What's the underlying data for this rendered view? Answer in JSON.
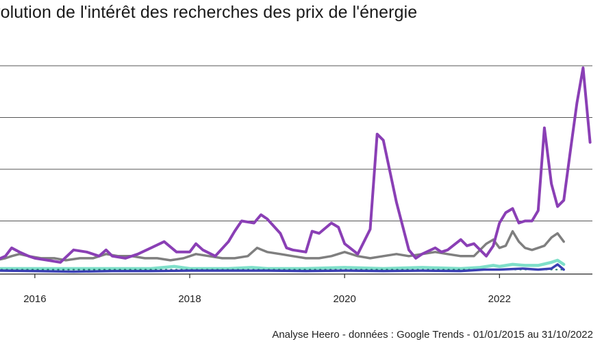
{
  "title": "volution de l'intérêt des recherches des prix de l'énergie",
  "caption": "Analyse Heero - données : Google Trends - 01/01/2015 au 31/10/2022",
  "chart_data": {
    "type": "line",
    "title": "volution de l'intérêt des recherches des prix de l'énergie",
    "xlabel": "",
    "ylabel": "",
    "xlim": [
      2015.55,
      2023.2
    ],
    "ylim": [
      0,
      100
    ],
    "x_ticks": [
      {
        "value": 2016,
        "label": "2016"
      },
      {
        "value": 2018,
        "label": "2018"
      },
      {
        "value": 2020,
        "label": "2020"
      },
      {
        "value": 2022,
        "label": "2022"
      }
    ],
    "y_gridlines": [
      25,
      50,
      75,
      100
    ],
    "series": [
      {
        "name": "series-grey",
        "color": "#7f7f7f",
        "points": [
          [
            2015.5,
            6
          ],
          [
            2015.62,
            7
          ],
          [
            2015.7,
            8
          ],
          [
            2015.8,
            9
          ],
          [
            2015.92,
            8
          ],
          [
            2016.08,
            7
          ],
          [
            2016.25,
            7
          ],
          [
            2016.4,
            6
          ],
          [
            2016.58,
            7
          ],
          [
            2016.75,
            7
          ],
          [
            2016.92,
            9
          ],
          [
            2017.08,
            8
          ],
          [
            2017.25,
            8
          ],
          [
            2017.42,
            7
          ],
          [
            2017.58,
            7
          ],
          [
            2017.75,
            6
          ],
          [
            2017.92,
            7
          ],
          [
            2018.08,
            9
          ],
          [
            2018.25,
            8
          ],
          [
            2018.42,
            7
          ],
          [
            2018.58,
            7
          ],
          [
            2018.75,
            8
          ],
          [
            2018.87,
            12
          ],
          [
            2019.0,
            10
          ],
          [
            2019.17,
            9
          ],
          [
            2019.33,
            8
          ],
          [
            2019.5,
            7
          ],
          [
            2019.67,
            7
          ],
          [
            2019.83,
            8
          ],
          [
            2020.0,
            10
          ],
          [
            2020.17,
            8
          ],
          [
            2020.33,
            7
          ],
          [
            2020.5,
            8
          ],
          [
            2020.67,
            9
          ],
          [
            2020.83,
            8
          ],
          [
            2021.0,
            9
          ],
          [
            2021.17,
            10
          ],
          [
            2021.33,
            9
          ],
          [
            2021.5,
            8
          ],
          [
            2021.67,
            8
          ],
          [
            2021.83,
            14
          ],
          [
            2021.92,
            16
          ],
          [
            2022.0,
            12
          ],
          [
            2022.08,
            13
          ],
          [
            2022.17,
            20
          ],
          [
            2022.25,
            15
          ],
          [
            2022.33,
            12
          ],
          [
            2022.42,
            11
          ],
          [
            2022.5,
            12
          ],
          [
            2022.58,
            13
          ],
          [
            2022.67,
            17
          ],
          [
            2022.75,
            19
          ],
          [
            2022.83,
            15
          ]
        ]
      },
      {
        "name": "series-aqua",
        "color": "#7fdfc9",
        "points": [
          [
            2015.5,
            2
          ],
          [
            2016.0,
            2
          ],
          [
            2016.5,
            2
          ],
          [
            2017.0,
            2
          ],
          [
            2017.5,
            2
          ],
          [
            2017.8,
            3
          ],
          [
            2018.0,
            2
          ],
          [
            2018.5,
            2
          ],
          [
            2018.8,
            2.5
          ],
          [
            2019.0,
            2
          ],
          [
            2019.5,
            2
          ],
          [
            2020.0,
            2.5
          ],
          [
            2020.5,
            2
          ],
          [
            2021.0,
            2.5
          ],
          [
            2021.5,
            2
          ],
          [
            2021.75,
            2.5
          ],
          [
            2021.92,
            3.5
          ],
          [
            2022.0,
            3
          ],
          [
            2022.17,
            4
          ],
          [
            2022.33,
            3.5
          ],
          [
            2022.5,
            3.5
          ],
          [
            2022.67,
            5
          ],
          [
            2022.75,
            6
          ],
          [
            2022.83,
            4
          ]
        ]
      },
      {
        "name": "series-dotted",
        "color": "#1f7a6a",
        "points": [
          [
            2015.5,
            1.5
          ],
          [
            2022.85,
            1.5
          ]
        ]
      },
      {
        "name": "series-blue",
        "color": "#3a3fb3",
        "points": [
          [
            2015.5,
            1
          ],
          [
            2016.0,
            0.8
          ],
          [
            2016.5,
            0.5
          ],
          [
            2017.0,
            0.8
          ],
          [
            2017.5,
            0.8
          ],
          [
            2018.0,
            1
          ],
          [
            2018.5,
            1
          ],
          [
            2019.0,
            1
          ],
          [
            2019.5,
            0.8
          ],
          [
            2020.0,
            1
          ],
          [
            2020.5,
            0.8
          ],
          [
            2021.0,
            1
          ],
          [
            2021.5,
            0.8
          ],
          [
            2021.8,
            1.5
          ],
          [
            2022.0,
            1.5
          ],
          [
            2022.3,
            2
          ],
          [
            2022.5,
            1.5
          ],
          [
            2022.67,
            2
          ],
          [
            2022.75,
            4
          ],
          [
            2022.83,
            1.5
          ]
        ]
      },
      {
        "name": "series-purple",
        "color": "#8a3fb5",
        "points": [
          [
            2015.5,
            6
          ],
          [
            2015.62,
            8
          ],
          [
            2015.7,
            12
          ],
          [
            2015.8,
            10
          ],
          [
            2015.92,
            8
          ],
          [
            2016.0,
            7
          ],
          [
            2016.17,
            6
          ],
          [
            2016.33,
            5
          ],
          [
            2016.5,
            11
          ],
          [
            2016.67,
            10
          ],
          [
            2016.83,
            8
          ],
          [
            2016.92,
            11
          ],
          [
            2017.0,
            8
          ],
          [
            2017.17,
            7
          ],
          [
            2017.33,
            9
          ],
          [
            2017.5,
            12
          ],
          [
            2017.67,
            15
          ],
          [
            2017.83,
            10
          ],
          [
            2018.0,
            10
          ],
          [
            2018.08,
            14
          ],
          [
            2018.17,
            11
          ],
          [
            2018.33,
            8
          ],
          [
            2018.5,
            15
          ],
          [
            2018.58,
            20
          ],
          [
            2018.67,
            25
          ],
          [
            2018.83,
            24
          ],
          [
            2018.92,
            28
          ],
          [
            2019.0,
            26
          ],
          [
            2019.17,
            19
          ],
          [
            2019.25,
            12
          ],
          [
            2019.33,
            11
          ],
          [
            2019.5,
            10
          ],
          [
            2019.58,
            20
          ],
          [
            2019.67,
            19
          ],
          [
            2019.83,
            24
          ],
          [
            2019.92,
            22
          ],
          [
            2020.0,
            14
          ],
          [
            2020.17,
            9
          ],
          [
            2020.33,
            21
          ],
          [
            2020.42,
            67
          ],
          [
            2020.5,
            64
          ],
          [
            2020.67,
            34
          ],
          [
            2020.83,
            11
          ],
          [
            2020.92,
            7
          ],
          [
            2021.0,
            9
          ],
          [
            2021.17,
            12
          ],
          [
            2021.25,
            10
          ],
          [
            2021.33,
            11
          ],
          [
            2021.5,
            16
          ],
          [
            2021.58,
            13
          ],
          [
            2021.67,
            14
          ],
          [
            2021.83,
            8
          ],
          [
            2021.92,
            13
          ],
          [
            2022.0,
            24
          ],
          [
            2022.08,
            29
          ],
          [
            2022.17,
            31
          ],
          [
            2022.25,
            24
          ],
          [
            2022.33,
            25
          ],
          [
            2022.42,
            25
          ],
          [
            2022.5,
            30
          ],
          [
            2022.58,
            70
          ],
          [
            2022.67,
            43
          ],
          [
            2022.75,
            32
          ],
          [
            2022.83,
            35
          ],
          [
            2022.92,
            60
          ],
          [
            2023.0,
            82
          ],
          [
            2023.08,
            99
          ],
          [
            2023.17,
            63
          ]
        ]
      }
    ]
  }
}
